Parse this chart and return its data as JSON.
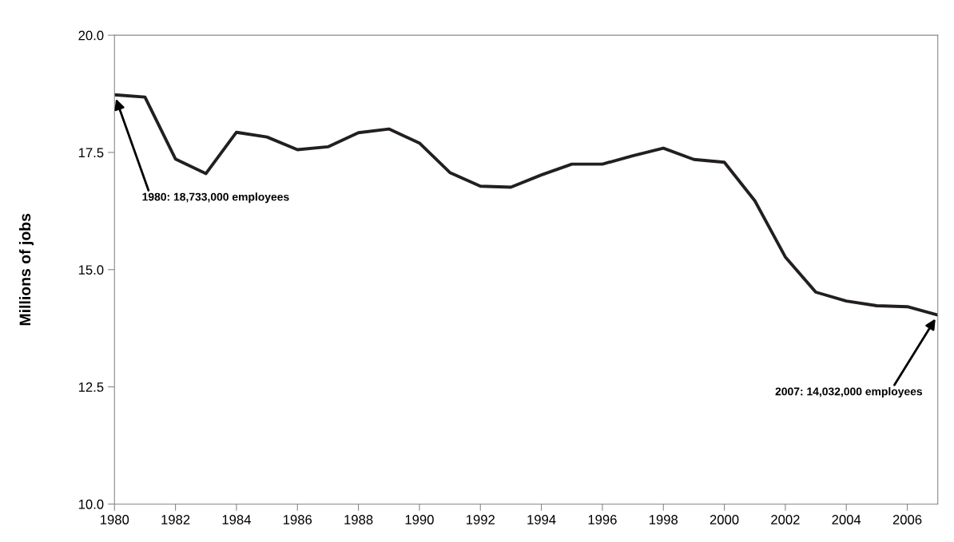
{
  "chart_data": {
    "type": "line",
    "ylabel": "Millions of jobs",
    "x": [
      1980,
      1981,
      1982,
      1983,
      1984,
      1985,
      1986,
      1987,
      1988,
      1989,
      1990,
      1991,
      1992,
      1993,
      1994,
      1995,
      1996,
      1997,
      1998,
      1999,
      2000,
      2001,
      2002,
      2003,
      2004,
      2005,
      2006,
      2007
    ],
    "series": [
      {
        "color": "#231f20",
        "values": [
          18.73,
          18.68,
          17.36,
          17.05,
          17.93,
          17.83,
          17.56,
          17.62,
          17.92,
          18.0,
          17.7,
          17.07,
          16.78,
          16.76,
          17.02,
          17.25,
          17.25,
          17.43,
          17.59,
          17.35,
          17.29,
          16.47,
          15.27,
          14.52,
          14.33,
          14.23,
          14.21,
          14.03
        ]
      }
    ],
    "xlim": [
      1980,
      2007
    ],
    "xticks": [
      1980,
      1982,
      1984,
      1986,
      1988,
      1990,
      1992,
      1994,
      1996,
      1998,
      2000,
      2002,
      2004,
      2006
    ],
    "ylim": [
      10,
      20
    ],
    "yticks": [
      {
        "value": 10,
        "label": "10.0"
      },
      12.5,
      {
        "value": 15,
        "label": "15.0"
      },
      17.5,
      {
        "value": 20,
        "label": "20.0"
      }
    ],
    "grid": false,
    "legend": false,
    "marker": "none",
    "line_style": "solid",
    "annotations": [
      {
        "text": "1980: 18,733,000 employees",
        "x": 1980,
        "y": 18.733
      },
      {
        "text": "2007: 14,032,000 employees",
        "x": 2007,
        "y": 14.032
      }
    ]
  }
}
